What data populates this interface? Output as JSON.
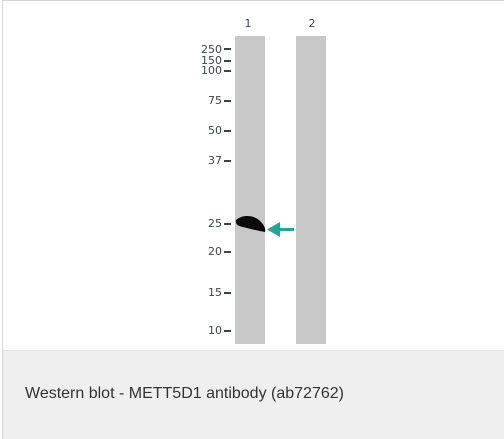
{
  "lanes": [
    {
      "label": "1"
    },
    {
      "label": "2"
    }
  ],
  "markers": [
    {
      "label": "250"
    },
    {
      "label": "150"
    },
    {
      "label": "100"
    },
    {
      "label": "75"
    },
    {
      "label": "50"
    },
    {
      "label": "37"
    },
    {
      "label": "25"
    },
    {
      "label": "20"
    },
    {
      "label": "15"
    },
    {
      "label": "10"
    }
  ],
  "caption": "Western blot - METT5D1 antibody (ab72762)",
  "colors": {
    "lane": "#c8c8c8",
    "band": "#0a0a0a",
    "arrow": "#1fa89a",
    "marker_text": "#3a4350",
    "caption_bg": "#efefef"
  }
}
